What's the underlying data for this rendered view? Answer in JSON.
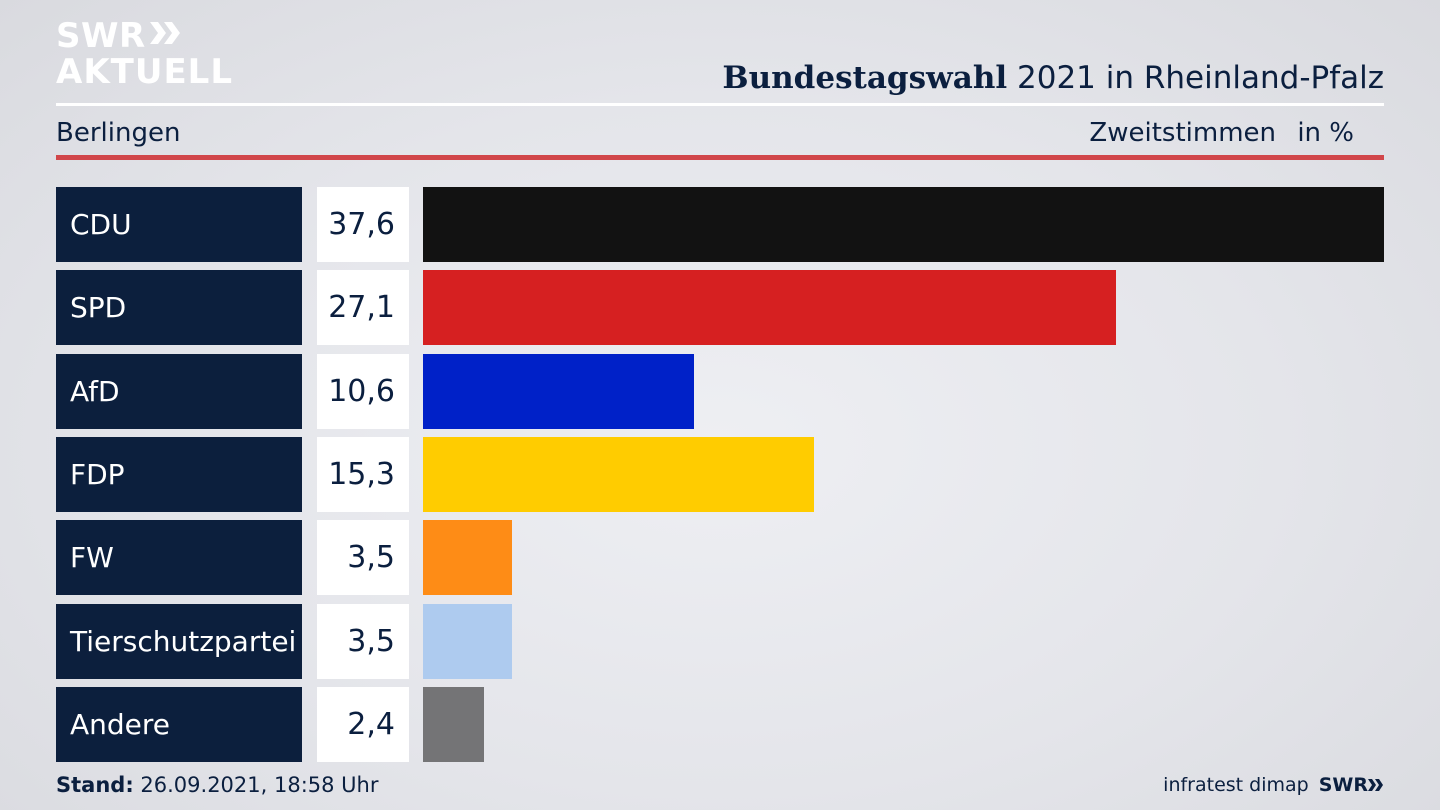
{
  "logo": {
    "line1": "SWR",
    "line2": "AKTUELL"
  },
  "header": {
    "title_bold": "Bundestagswahl",
    "title_rest": " 2021 in Rheinland-Pfalz",
    "subtitle": "Berlingen",
    "metric": "Zweitstimmen",
    "unit": "in %"
  },
  "footer": {
    "stand_label": "Stand:",
    "stand_value": " 26.09.2021, 18:58 Uhr",
    "source": "infratest dimap",
    "brand": "SWR"
  },
  "colors": {
    "navy": "#0c1f3d",
    "red_line": "#d1464a"
  },
  "chart_data": {
    "type": "bar",
    "orientation": "horizontal",
    "title": "Bundestagswahl 2021 in Rheinland-Pfalz",
    "subtitle": "Berlingen",
    "xlabel": "Zweitstimmen in %",
    "categories": [
      "CDU",
      "SPD",
      "AfD",
      "FDP",
      "FW",
      "Tierschutzpartei",
      "Andere"
    ],
    "values": [
      37.6,
      27.1,
      10.6,
      15.3,
      3.5,
      3.5,
      2.4
    ],
    "value_labels": [
      "37,6",
      "27,1",
      "10,6",
      "15,3",
      "3,5",
      "3,5",
      "2,4"
    ],
    "colors": [
      "#121212",
      "#d62021",
      "#0021c8",
      "#ffcc00",
      "#fe8c16",
      "#aecbef",
      "#747476"
    ],
    "xlim": [
      0,
      37.6
    ],
    "grid": false,
    "legend": "none"
  }
}
